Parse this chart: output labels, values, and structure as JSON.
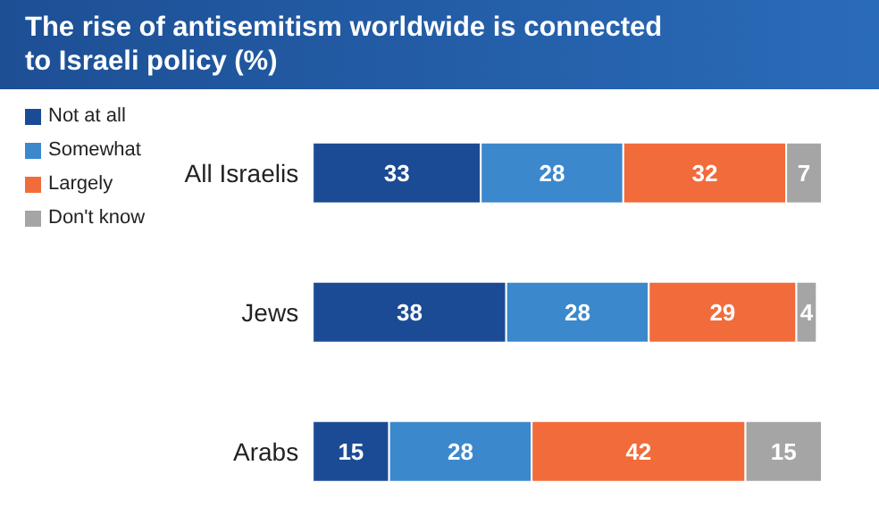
{
  "chart_data": {
    "type": "bar",
    "orientation": "horizontal",
    "stacked": true,
    "title": "The rise of antisemitism worldwide is connected to Israeli policy (%)",
    "categories": [
      "All Israelis",
      "Jews",
      "Arabs"
    ],
    "series": [
      {
        "name": "Not at all",
        "color": "#1b4b94",
        "values": [
          33,
          38,
          15
        ]
      },
      {
        "name": "Somewhat",
        "color": "#3b88cd",
        "values": [
          28,
          28,
          28
        ]
      },
      {
        "name": "Largely",
        "color": "#f26b3a",
        "values": [
          32,
          29,
          42
        ]
      },
      {
        "name": "Don't know",
        "color": "#a5a5a5",
        "values": [
          7,
          4,
          15
        ]
      }
    ],
    "xlim": [
      0,
      100
    ],
    "tick_labels": "y",
    "data_labels": true,
    "legend": "top left",
    "grid": false
  }
}
